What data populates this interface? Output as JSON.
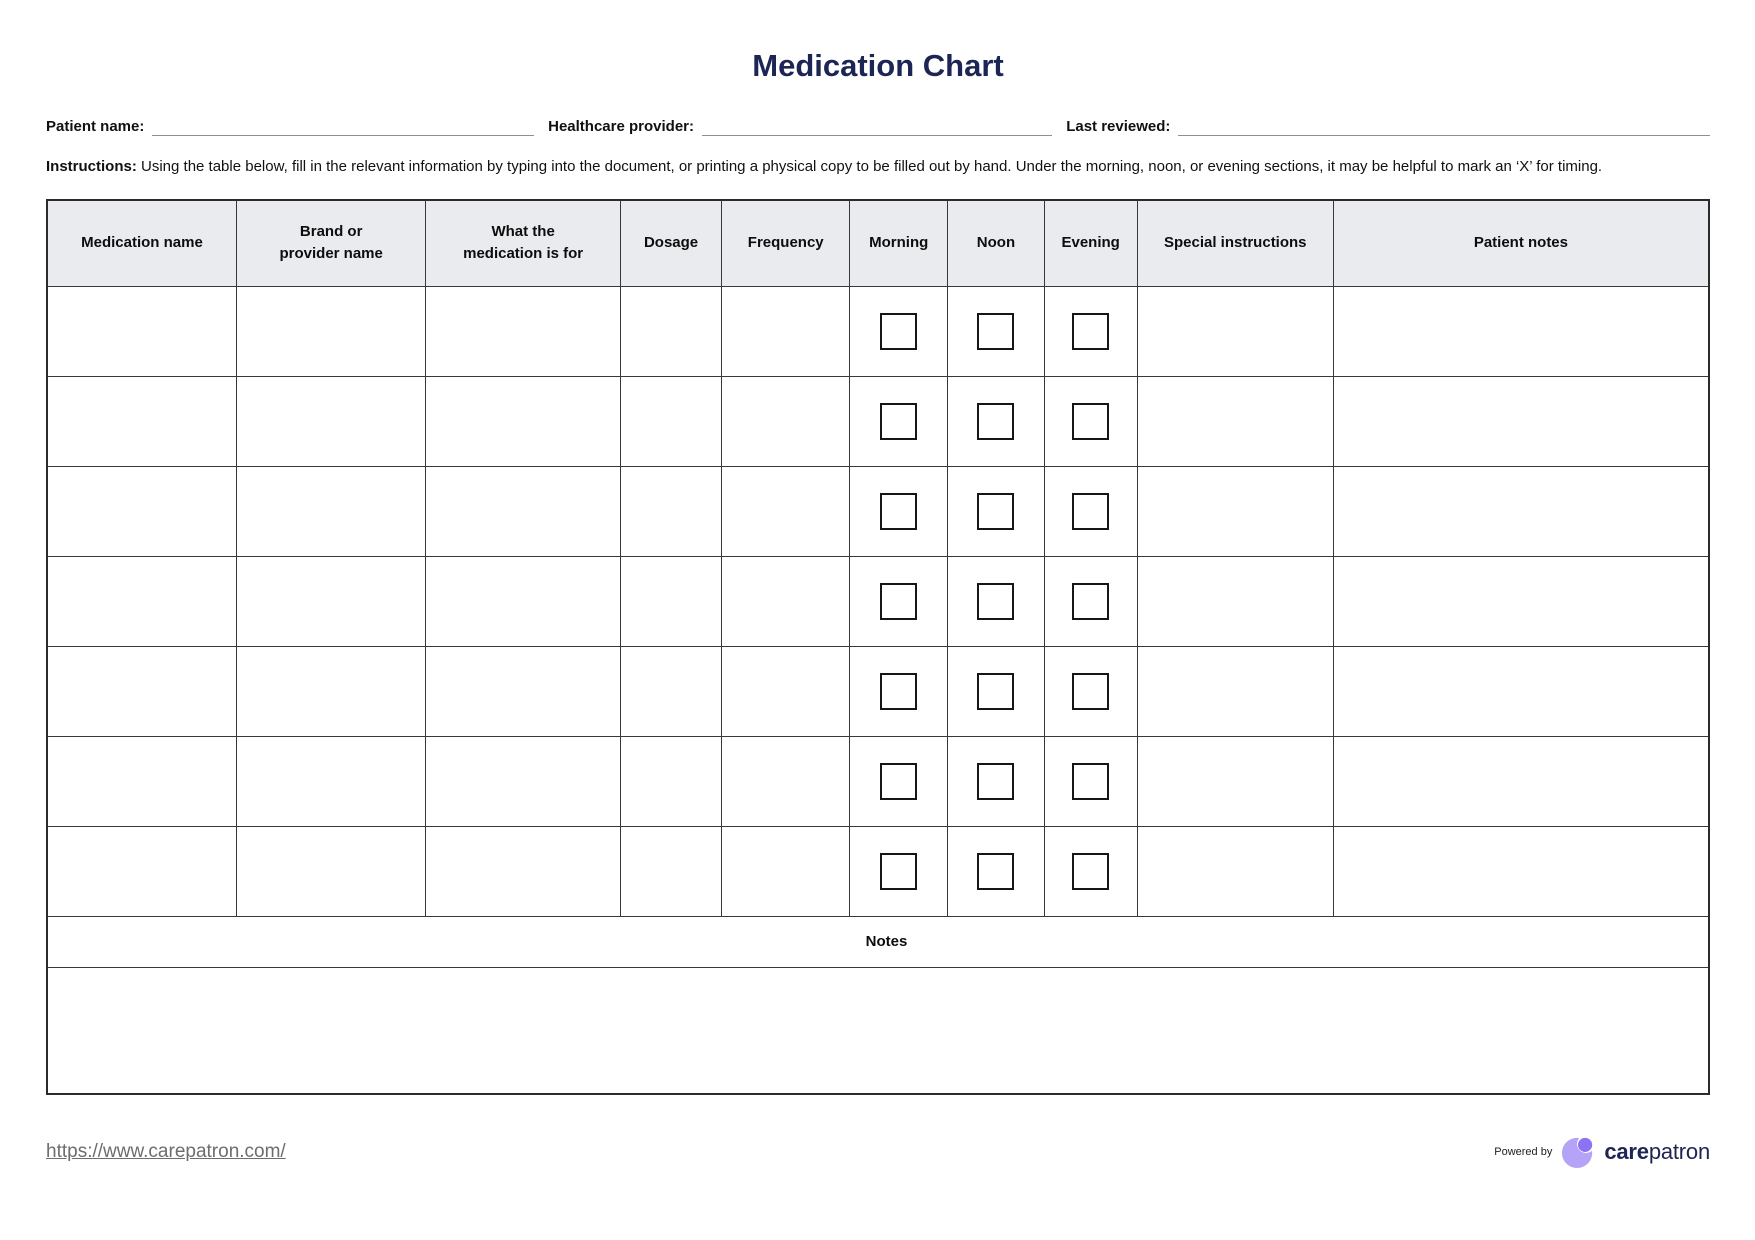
{
  "title": "Medication Chart",
  "fields": [
    {
      "label": "Patient name:",
      "value": ""
    },
    {
      "label": "Healthcare provider:",
      "value": ""
    },
    {
      "label": "Last reviewed:",
      "value": ""
    }
  ],
  "instructions": {
    "label": "Instructions:",
    "text": " Using the table below, fill in the relevant information by typing into the document, or printing a physical copy to be filled out by hand. Under the morning, noon, or evening sections, it may be helpful to mark an ‘X’ for timing."
  },
  "table": {
    "columns": [
      "Medication name",
      "Brand or\nprovider name",
      "What the\nmedication is for",
      "Dosage",
      "Frequency",
      "Morning",
      "Noon",
      "Evening",
      "Special instructions",
      "Patient notes"
    ],
    "column_widths_pct": [
      11.4,
      11.4,
      11.7,
      6.1,
      7.7,
      5.9,
      5.8,
      5.6,
      11.8,
      22.6
    ],
    "checkbox_col_indexes": [
      5,
      6,
      7
    ],
    "row_count": 7,
    "checkbox_checked": false,
    "notes_label": "Notes",
    "notes_value": ""
  },
  "footer": {
    "url": "https://www.carepatron.com/",
    "powered_by": "Powered by",
    "brand_care": "care",
    "brand_patron": "patron"
  },
  "colors": {
    "accent": "#1c2553",
    "header_bg": "#e9ebef",
    "border": "#383838",
    "link_gray": "#6d6d6d",
    "logo_light": "#b5a3f8",
    "logo_dark": "#8d72f4"
  }
}
